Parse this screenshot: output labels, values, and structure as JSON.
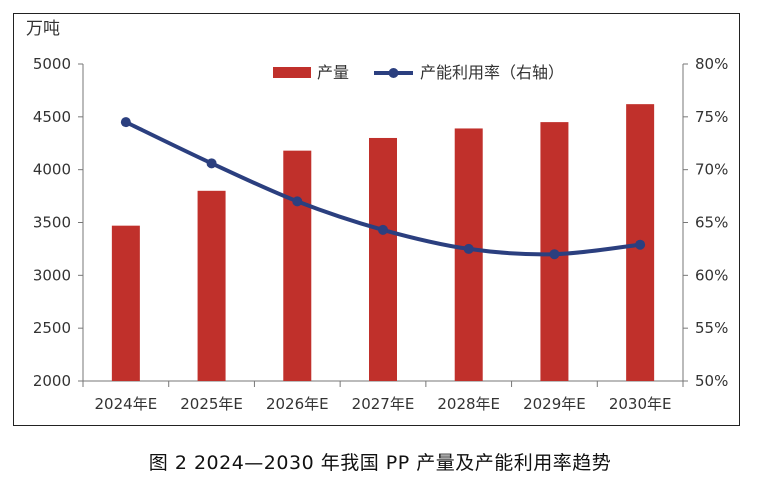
{
  "chart_data": {
    "type": "bar",
    "categories": [
      "2024年E",
      "2025年E",
      "2026年E",
      "2027年E",
      "2028年E",
      "2029年E",
      "2030年E"
    ],
    "series": [
      {
        "name": "产量",
        "type": "bar",
        "axis": "left",
        "color": "#C0302B",
        "values": [
          3470,
          3800,
          4180,
          4300,
          4390,
          4450,
          4620
        ]
      },
      {
        "name": "产能利用率（右轴）",
        "type": "line",
        "axis": "right",
        "color": "#2B3F7F",
        "values": [
          74.5,
          70.6,
          67.0,
          64.3,
          62.5,
          62.0,
          62.9
        ]
      }
    ],
    "ylabel": "万吨",
    "ylim": [
      2000,
      5000
    ],
    "yticks": [
      "2000",
      "2500",
      "3000",
      "3500",
      "4000",
      "4500",
      "5000"
    ],
    "y2lim": [
      50,
      80
    ],
    "y2ticks": [
      "50%",
      "55%",
      "60%",
      "65%",
      "70%",
      "75%",
      "80%"
    ],
    "legend_placement": "top-center",
    "grid": false
  },
  "caption": "图 2  2024—2030 年我国 PP 产量及产能利用率趋势"
}
